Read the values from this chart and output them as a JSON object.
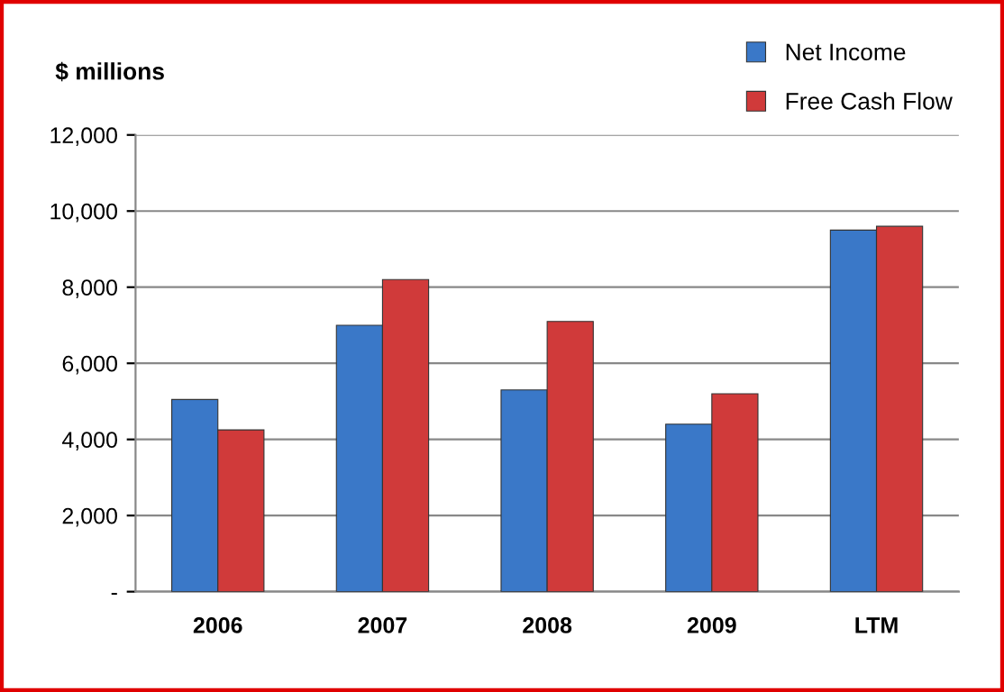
{
  "chart_data": {
    "type": "bar",
    "ylabel": "$ millions",
    "categories": [
      "2006",
      "2007",
      "2008",
      "2009",
      "LTM"
    ],
    "series": [
      {
        "name": "Net Income",
        "color": "#3a78c8",
        "values": [
          5050,
          7000,
          5300,
          4400,
          9500
        ]
      },
      {
        "name": "Free Cash Flow",
        "color": "#d03a3a",
        "values": [
          4250,
          8200,
          7100,
          5200,
          9600
        ]
      }
    ],
    "ylim": [
      0,
      12000
    ],
    "yticks": [
      {
        "value": 0,
        "label": "-"
      },
      {
        "value": 2000,
        "label": "2,000"
      },
      {
        "value": 4000,
        "label": "4,000"
      },
      {
        "value": 6000,
        "label": "6,000"
      },
      {
        "value": 8000,
        "label": "8,000"
      },
      {
        "value": 10000,
        "label": "10,000"
      },
      {
        "value": 12000,
        "label": "12,000"
      }
    ],
    "grid": "y",
    "legend": "top right"
  }
}
